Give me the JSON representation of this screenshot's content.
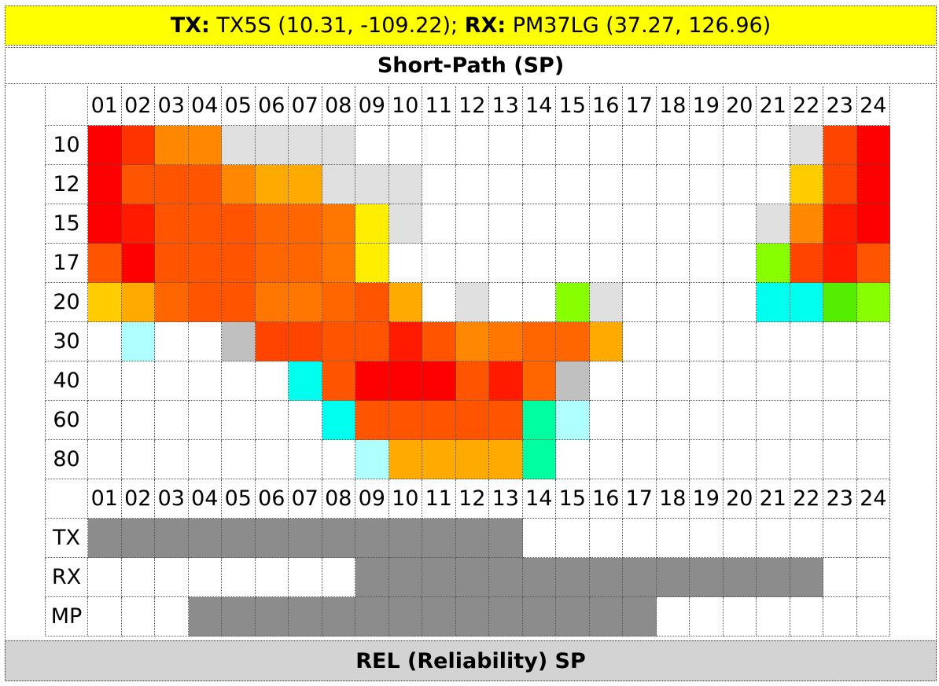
{
  "header": {
    "tx_label": "TX:",
    "tx_value": " TX5S (10.31, -109.22); ",
    "rx_label": "RX:",
    "rx_value": " PM37LG (37.27, 126.96)"
  },
  "section_title": "Short-Path (SP)",
  "footer_title": "REL (Reliability) SP",
  "colors": {
    "e": "#ffffff",
    "g": "#e0e0e0",
    "d": "#c0c0c0",
    "k": "#8c8c8c",
    "R": "#ff0000",
    "r": "#ff1a00",
    "O": "#ff3300",
    "o": "#ff4400",
    "n": "#ff5500",
    "m": "#ff6600",
    "a": "#ff7700",
    "b": "#ff8800",
    "c": "#ffaa00",
    "y": "#ffcc00",
    "Y": "#ffee00",
    "l": "#88ff00",
    "L": "#55ee00",
    "p": "#00ffa0",
    "C": "#00ffee",
    "q": "#b0ffff"
  },
  "chart_data": {
    "type": "heatmap",
    "title": "Short-Path (SP)",
    "hours": [
      "01",
      "02",
      "03",
      "04",
      "05",
      "06",
      "07",
      "08",
      "09",
      "10",
      "11",
      "12",
      "13",
      "14",
      "15",
      "16",
      "17",
      "18",
      "19",
      "20",
      "21",
      "22",
      "23",
      "24"
    ],
    "bands": [
      "10",
      "12",
      "15",
      "17",
      "20",
      "30",
      "40",
      "60",
      "80"
    ],
    "cells": [
      "RObbggggeeeeeeeeeeeeegoR",
      "RnnnbccgggeeeeeeeeeeeyoR",
      "RrnnnmmaYgeeeeeeeeeegbrR",
      "nRnnnmmaYeeeeeeeeeeelorn",
      "ycmnnaamncegeelgeeeeCCLl",
      "eqeedoonnrnbammceeeeeeee",
      "eeeeeeCnRRRnrmdeeeeeeeee",
      "eeeeeeeCnnnnnpqeeeeeeeee",
      "eeeeeeeeqccccpeeeeeeeeee"
    ],
    "flags": [
      {
        "label": "TX",
        "cells": "kkkkkkkkkkkkkeeeeeeeeeee"
      },
      {
        "label": "RX",
        "cells": "eeeeeeeekkkkkkkkkkkkkkee"
      },
      {
        "label": "MP",
        "cells": "eeekkkkkkkkkkkkkkeeeeeee"
      }
    ]
  }
}
